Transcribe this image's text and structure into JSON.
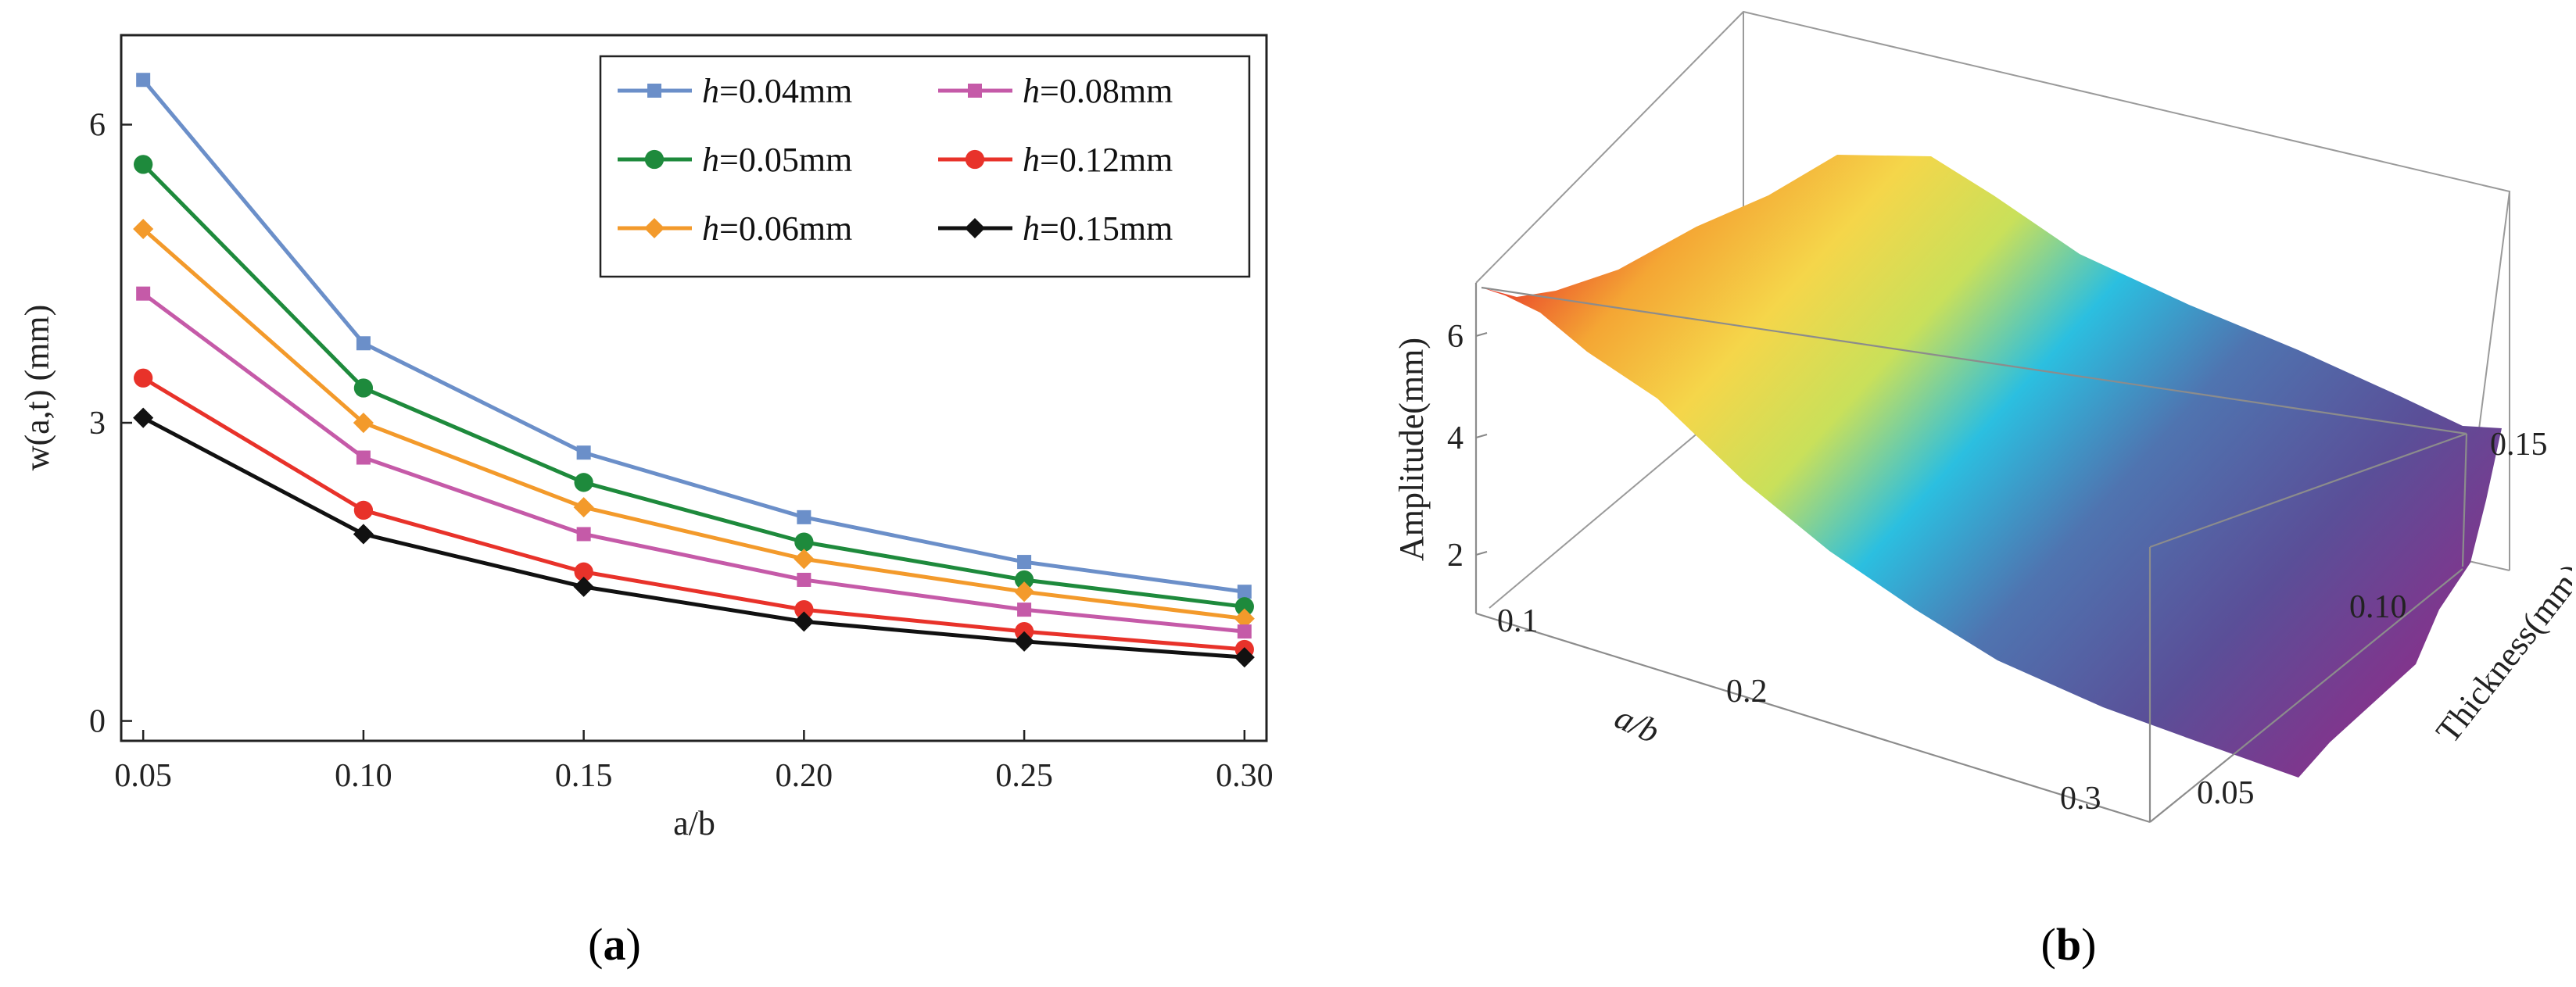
{
  "panels": {
    "a_letter": "a",
    "b_letter": "b"
  },
  "chart_data": [
    {
      "type": "line",
      "panel": "a",
      "xlabel": "a/b",
      "ylabel": "w(a,t) (mm)",
      "xlim": [
        0.045,
        0.305
      ],
      "ylim": [
        -0.2,
        6.9
      ],
      "xticks": [
        0.05,
        0.1,
        0.15,
        0.2,
        0.25,
        0.3
      ],
      "xtick_labels": [
        "0.05",
        "0.10",
        "0.15",
        "0.20",
        "0.25",
        "0.30"
      ],
      "yticks": [
        0,
        3,
        6
      ],
      "ytick_labels": [
        "0",
        "3",
        "6"
      ],
      "grid": false,
      "legend_position": "top-right",
      "x": [
        0.05,
        0.1,
        0.15,
        0.2,
        0.25,
        0.3
      ],
      "series": [
        {
          "prefix": "h",
          "name": "=0.04mm",
          "color": "#6b8fc9",
          "marker": "square",
          "values": [
            6.45,
            3.8,
            2.7,
            2.05,
            1.6,
            1.3
          ]
        },
        {
          "prefix": "h",
          "name": "=0.05mm",
          "color": "#1e8a3c",
          "marker": "circle",
          "values": [
            5.6,
            3.35,
            2.4,
            1.8,
            1.42,
            1.15
          ]
        },
        {
          "prefix": "h",
          "name": "=0.06mm",
          "color": "#f39a2b",
          "marker": "diamond",
          "values": [
            4.95,
            3.0,
            2.15,
            1.63,
            1.3,
            1.03
          ]
        },
        {
          "prefix": "h",
          "name": "=0.08mm",
          "color": "#c55aa8",
          "marker": "square",
          "values": [
            4.3,
            2.65,
            1.88,
            1.42,
            1.12,
            0.9
          ]
        },
        {
          "prefix": "h",
          "name": "=0.12mm",
          "color": "#e8322a",
          "marker": "circle",
          "values": [
            3.45,
            2.12,
            1.5,
            1.12,
            0.9,
            0.72
          ]
        },
        {
          "prefix": "h",
          "name": "=0.15mm",
          "color": "#111111",
          "marker": "diamond",
          "values": [
            3.05,
            1.88,
            1.35,
            1.0,
            0.8,
            0.64
          ]
        }
      ]
    },
    {
      "type": "surface",
      "panel": "b",
      "zlabel": "Amplitude(mm)",
      "xlabel": "a/b",
      "ylabel": "Thickness(mm)",
      "zticks": [
        2,
        4,
        6
      ],
      "ztick_labels": [
        "2",
        "4",
        "6"
      ],
      "xticks": [
        0.1,
        0.2,
        0.3
      ],
      "xtick_labels": [
        "0.1",
        "0.2",
        "0.3"
      ],
      "yticks": [
        0.05,
        0.1,
        0.15
      ],
      "ytick_labels": [
        "0.05",
        "0.10",
        "0.15"
      ],
      "colormap": [
        "#e8322a",
        "#f5d64a",
        "#c9e05a",
        "#2bbfe0",
        "#5a5aa0",
        "#8a2f8a"
      ]
    }
  ]
}
